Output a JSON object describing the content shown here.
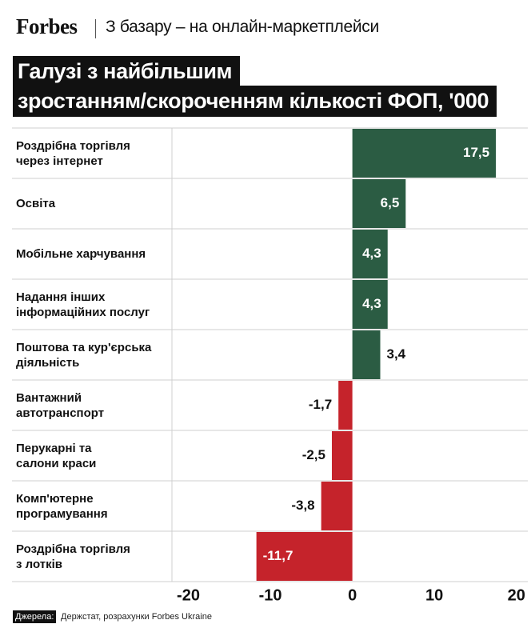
{
  "header": {
    "brand": "Forbes",
    "subtitle": "З базару – на онлайн-маркетплейси"
  },
  "chart_data": {
    "type": "bar",
    "orientation": "horizontal",
    "title": [
      "Галузі з найбільшим",
      "зростанням/скороченням кількості ФОП, '000"
    ],
    "categories": [
      "Роздрібна торгівля\nчерез інтернет",
      "Освіта",
      "Мобільне харчування",
      "Надання інших\nінформаційних послуг",
      "Поштова та кур'єрська\nдіяльність",
      "Вантажний\nавтотранспорт",
      "Перукарні та\nсалони краси",
      "Комп'ютерне\nпрограмування",
      "Роздрібна торгівля\nз лотків"
    ],
    "values": [
      17.5,
      6.5,
      4.3,
      4.3,
      3.4,
      -1.7,
      -2.5,
      -3.8,
      -11.7
    ],
    "value_labels": [
      "17,5",
      "6,5",
      "4,3",
      "4,3",
      "3,4",
      "-1,7",
      "-2,5",
      "-3,8",
      "-11,7"
    ],
    "positive_color": "#2b5c43",
    "negative_color": "#c5232b",
    "xlim": [
      -22,
      21
    ],
    "xticks": [
      -20,
      -10,
      0,
      10,
      20
    ],
    "grid": false
  },
  "source": {
    "label": "Джерела:",
    "text": "Держстат, розрахунки Forbes Ukraine"
  }
}
